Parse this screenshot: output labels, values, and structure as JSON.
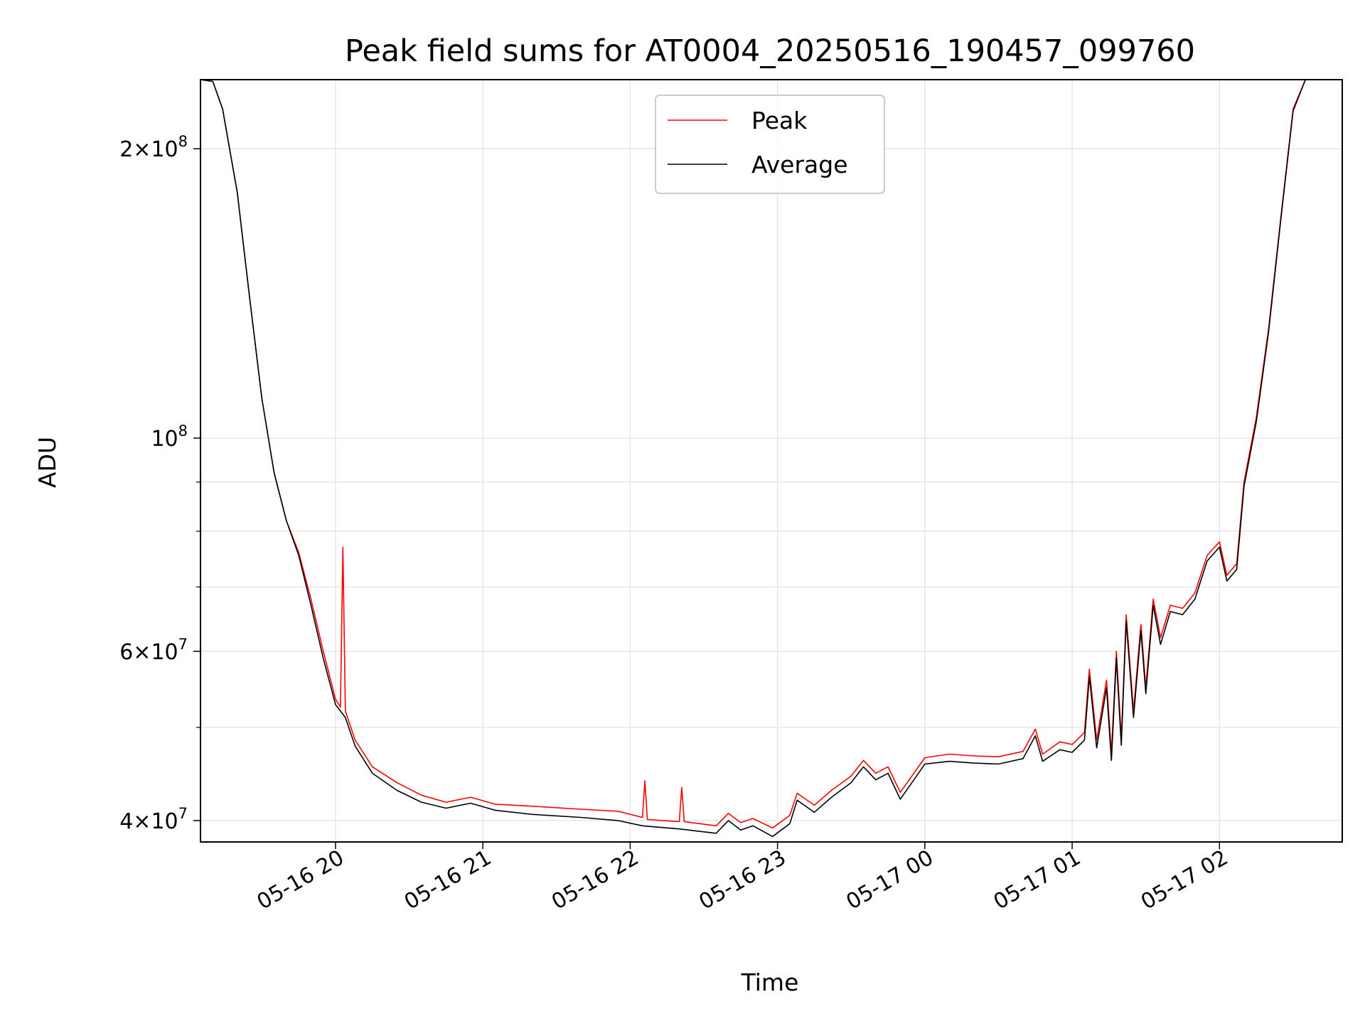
{
  "chart_data": {
    "type": "line",
    "title": "Peak field sums for AT0004_20250516_190457_099760",
    "xlabel": "Time",
    "ylabel": "ADU",
    "y_scale": "log",
    "ylim": [
      38000000,
      236000000
    ],
    "xlim": [
      "2025-05-16T19:05",
      "2025-05-17T02:50"
    ],
    "grid": true,
    "legend_position": "top-center",
    "x_ticks": [
      {
        "t": "2025-05-16T20:00",
        "label": "05-16 20"
      },
      {
        "t": "2025-05-16T21:00",
        "label": "05-16 21"
      },
      {
        "t": "2025-05-16T22:00",
        "label": "05-16 22"
      },
      {
        "t": "2025-05-16T23:00",
        "label": "05-16 23"
      },
      {
        "t": "2025-05-17T00:00",
        "label": "05-17 00"
      },
      {
        "t": "2025-05-17T01:00",
        "label": "05-17 01"
      },
      {
        "t": "2025-05-17T02:00",
        "label": "05-17 02"
      }
    ],
    "y_ticks": [
      {
        "value": 40000000,
        "mantissa": "4",
        "exp": "7"
      },
      {
        "value": 60000000,
        "mantissa": "6",
        "exp": "7"
      },
      {
        "value": 100000000,
        "mantissa": "",
        "exp": "8"
      },
      {
        "value": 200000000,
        "mantissa": "2",
        "exp": "8"
      }
    ],
    "y_minor_ticks": [
      50000000,
      70000000,
      80000000,
      90000000
    ],
    "series": [
      {
        "name": "Peak",
        "color": "#ff0000",
        "points": [
          [
            "2025-05-16T19:05",
            236000000
          ],
          [
            "2025-05-16T19:10",
            235000000
          ],
          [
            "2025-05-16T19:14",
            220000000
          ],
          [
            "2025-05-16T19:20",
            180000000
          ],
          [
            "2025-05-16T19:25",
            140000000
          ],
          [
            "2025-05-16T19:30",
            110000000
          ],
          [
            "2025-05-16T19:35",
            92000000
          ],
          [
            "2025-05-16T19:40",
            82000000
          ],
          [
            "2025-05-16T19:45",
            76000000
          ],
          [
            "2025-05-16T19:50",
            68000000
          ],
          [
            "2025-05-16T19:55",
            60000000
          ],
          [
            "2025-05-16T20:00",
            53500000
          ],
          [
            "2025-05-16T20:02",
            52500000
          ],
          [
            "2025-05-16T20:03",
            77000000
          ],
          [
            "2025-05-16T20:04",
            52000000
          ],
          [
            "2025-05-16T20:08",
            48500000
          ],
          [
            "2025-05-16T20:15",
            45500000
          ],
          [
            "2025-05-16T20:25",
            43800000
          ],
          [
            "2025-05-16T20:35",
            42500000
          ],
          [
            "2025-05-16T20:45",
            41800000
          ],
          [
            "2025-05-16T20:55",
            42300000
          ],
          [
            "2025-05-16T21:05",
            41600000
          ],
          [
            "2025-05-16T21:20",
            41400000
          ],
          [
            "2025-05-16T21:40",
            41100000
          ],
          [
            "2025-05-16T21:55",
            40900000
          ],
          [
            "2025-05-16T22:05",
            40300000
          ],
          [
            "2025-05-16T22:06",
            44000000
          ],
          [
            "2025-05-16T22:07",
            40100000
          ],
          [
            "2025-05-16T22:20",
            39900000
          ],
          [
            "2025-05-16T22:21",
            43300000
          ],
          [
            "2025-05-16T22:22",
            39900000
          ],
          [
            "2025-05-16T22:35",
            39500000
          ],
          [
            "2025-05-16T22:40",
            40700000
          ],
          [
            "2025-05-16T22:45",
            39800000
          ],
          [
            "2025-05-16T22:50",
            40200000
          ],
          [
            "2025-05-16T22:58",
            39300000
          ],
          [
            "2025-05-16T23:05",
            40500000
          ],
          [
            "2025-05-16T23:08",
            42700000
          ],
          [
            "2025-05-16T23:15",
            41500000
          ],
          [
            "2025-05-16T23:22",
            43000000
          ],
          [
            "2025-05-16T23:30",
            44500000
          ],
          [
            "2025-05-16T23:35",
            46200000
          ],
          [
            "2025-05-16T23:40",
            44800000
          ],
          [
            "2025-05-16T23:45",
            45500000
          ],
          [
            "2025-05-16T23:50",
            42800000
          ],
          [
            "2025-05-16T23:55",
            44600000
          ],
          [
            "2025-05-17T00:00",
            46500000
          ],
          [
            "2025-05-17T00:10",
            46900000
          ],
          [
            "2025-05-17T00:20",
            46700000
          ],
          [
            "2025-05-17T00:30",
            46600000
          ],
          [
            "2025-05-17T00:40",
            47200000
          ],
          [
            "2025-05-17T00:45",
            49800000
          ],
          [
            "2025-05-17T00:48",
            46900000
          ],
          [
            "2025-05-17T00:55",
            48300000
          ],
          [
            "2025-05-17T01:00",
            48000000
          ],
          [
            "2025-05-17T01:05",
            49400000
          ],
          [
            "2025-05-17T01:07",
            57500000
          ],
          [
            "2025-05-17T01:10",
            48500000
          ],
          [
            "2025-05-17T01:14",
            56000000
          ],
          [
            "2025-05-17T01:16",
            47000000
          ],
          [
            "2025-05-17T01:18",
            60000000
          ],
          [
            "2025-05-17T01:20",
            48700000
          ],
          [
            "2025-05-17T01:22",
            65500000
          ],
          [
            "2025-05-17T01:25",
            52000000
          ],
          [
            "2025-05-17T01:28",
            64000000
          ],
          [
            "2025-05-17T01:30",
            55000000
          ],
          [
            "2025-05-17T01:33",
            68000000
          ],
          [
            "2025-05-17T01:36",
            62000000
          ],
          [
            "2025-05-17T01:40",
            67000000
          ],
          [
            "2025-05-17T01:45",
            66500000
          ],
          [
            "2025-05-17T01:50",
            69000000
          ],
          [
            "2025-05-17T01:55",
            75500000
          ],
          [
            "2025-05-17T02:00",
            78000000
          ],
          [
            "2025-05-17T02:03",
            72000000
          ],
          [
            "2025-05-17T02:07",
            74000000
          ],
          [
            "2025-05-17T02:10",
            90000000
          ],
          [
            "2025-05-17T02:15",
            105000000
          ],
          [
            "2025-05-17T02:20",
            130000000
          ],
          [
            "2025-05-17T02:25",
            170000000
          ],
          [
            "2025-05-17T02:30",
            220000000
          ],
          [
            "2025-05-17T02:35",
            236000000
          ],
          [
            "2025-05-17T02:50",
            236000000
          ]
        ]
      },
      {
        "name": "Average",
        "color": "#000000",
        "points": [
          [
            "2025-05-16T19:05",
            236000000
          ],
          [
            "2025-05-16T19:10",
            235000000
          ],
          [
            "2025-05-16T19:14",
            220000000
          ],
          [
            "2025-05-16T19:20",
            180000000
          ],
          [
            "2025-05-16T19:25",
            140000000
          ],
          [
            "2025-05-16T19:30",
            110000000
          ],
          [
            "2025-05-16T19:35",
            92000000
          ],
          [
            "2025-05-16T19:40",
            82000000
          ],
          [
            "2025-05-16T19:45",
            75500000
          ],
          [
            "2025-05-16T19:50",
            67000000
          ],
          [
            "2025-05-16T19:55",
            59000000
          ],
          [
            "2025-05-16T20:00",
            52800000
          ],
          [
            "2025-05-16T20:04",
            51200000
          ],
          [
            "2025-05-16T20:08",
            47800000
          ],
          [
            "2025-05-16T20:15",
            44800000
          ],
          [
            "2025-05-16T20:25",
            43000000
          ],
          [
            "2025-05-16T20:35",
            41800000
          ],
          [
            "2025-05-16T20:45",
            41200000
          ],
          [
            "2025-05-16T20:55",
            41700000
          ],
          [
            "2025-05-16T21:05",
            41000000
          ],
          [
            "2025-05-16T21:20",
            40600000
          ],
          [
            "2025-05-16T21:40",
            40300000
          ],
          [
            "2025-05-16T21:55",
            40000000
          ],
          [
            "2025-05-16T22:05",
            39500000
          ],
          [
            "2025-05-16T22:20",
            39200000
          ],
          [
            "2025-05-16T22:35",
            38800000
          ],
          [
            "2025-05-16T22:40",
            40000000
          ],
          [
            "2025-05-16T22:45",
            39100000
          ],
          [
            "2025-05-16T22:50",
            39500000
          ],
          [
            "2025-05-16T22:58",
            38500000
          ],
          [
            "2025-05-16T23:05",
            39700000
          ],
          [
            "2025-05-16T23:08",
            42000000
          ],
          [
            "2025-05-16T23:15",
            40800000
          ],
          [
            "2025-05-16T23:22",
            42300000
          ],
          [
            "2025-05-16T23:30",
            43800000
          ],
          [
            "2025-05-16T23:35",
            45500000
          ],
          [
            "2025-05-16T23:40",
            44100000
          ],
          [
            "2025-05-16T23:45",
            44800000
          ],
          [
            "2025-05-16T23:50",
            42100000
          ],
          [
            "2025-05-16T23:55",
            43900000
          ],
          [
            "2025-05-17T00:00",
            45800000
          ],
          [
            "2025-05-17T00:10",
            46100000
          ],
          [
            "2025-05-17T00:20",
            45900000
          ],
          [
            "2025-05-17T00:30",
            45800000
          ],
          [
            "2025-05-17T00:40",
            46400000
          ],
          [
            "2025-05-17T00:45",
            49000000
          ],
          [
            "2025-05-17T00:48",
            46100000
          ],
          [
            "2025-05-17T00:55",
            47400000
          ],
          [
            "2025-05-17T01:00",
            47100000
          ],
          [
            "2025-05-17T01:05",
            48500000
          ],
          [
            "2025-05-17T01:07",
            56500000
          ],
          [
            "2025-05-17T01:10",
            47600000
          ],
          [
            "2025-05-17T01:14",
            55000000
          ],
          [
            "2025-05-17T01:16",
            46200000
          ],
          [
            "2025-05-17T01:18",
            59000000
          ],
          [
            "2025-05-17T01:20",
            47900000
          ],
          [
            "2025-05-17T01:22",
            64500000
          ],
          [
            "2025-05-17T01:25",
            51200000
          ],
          [
            "2025-05-17T01:28",
            63000000
          ],
          [
            "2025-05-17T01:30",
            54200000
          ],
          [
            "2025-05-17T01:33",
            67000000
          ],
          [
            "2025-05-17T01:36",
            61000000
          ],
          [
            "2025-05-17T01:40",
            66000000
          ],
          [
            "2025-05-17T01:45",
            65500000
          ],
          [
            "2025-05-17T01:50",
            68000000
          ],
          [
            "2025-05-17T01:55",
            74500000
          ],
          [
            "2025-05-17T02:00",
            77000000
          ],
          [
            "2025-05-17T02:03",
            71000000
          ],
          [
            "2025-05-17T02:07",
            73000000
          ],
          [
            "2025-05-17T02:10",
            89000000
          ],
          [
            "2025-05-17T02:15",
            104000000
          ],
          [
            "2025-05-17T02:20",
            129000000
          ],
          [
            "2025-05-17T02:25",
            169000000
          ],
          [
            "2025-05-17T02:30",
            219000000
          ],
          [
            "2025-05-17T02:35",
            236000000
          ],
          [
            "2025-05-17T02:50",
            236000000
          ]
        ]
      }
    ]
  }
}
